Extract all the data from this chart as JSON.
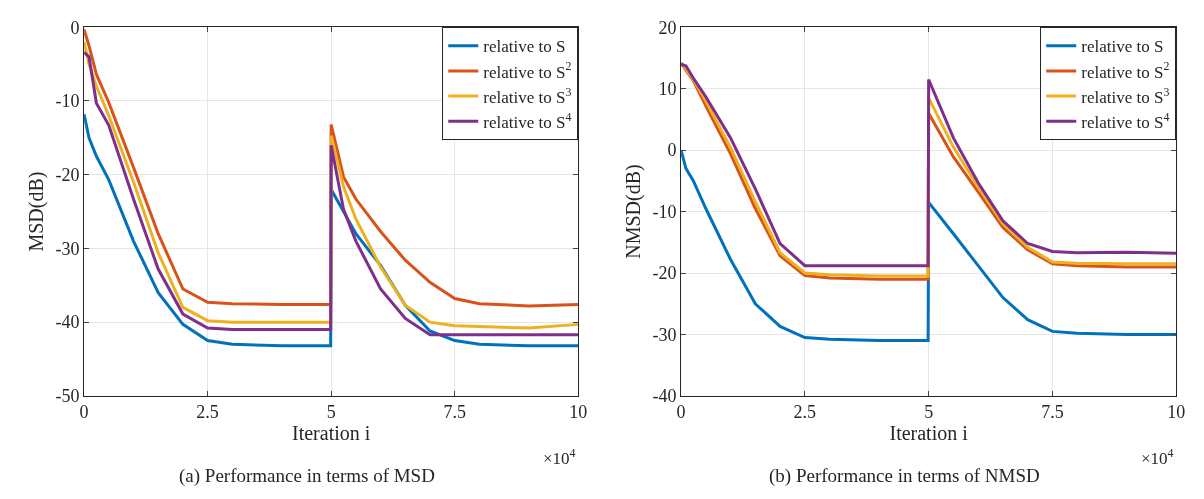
{
  "chart_data": [
    {
      "type": "line",
      "title": "(a) Performance in terms of MSD",
      "xlabel": "Iteration i",
      "ylabel": "MSD(dB)",
      "annotations": [
        "×10$^{4}$"
      ],
      "xlim": [
        0,
        10
      ],
      "xticks": [
        0,
        2.5,
        5,
        7.5,
        10
      ],
      "ylim": [
        -50,
        0
      ],
      "yticks": [
        -50,
        -40,
        -30,
        -20,
        -10,
        0
      ],
      "grid": true,
      "legend": "top right",
      "marker": "none",
      "line_style": "solid",
      "x": [
        0,
        0.1,
        0.25,
        0.5,
        1,
        1.5,
        2,
        2.5,
        3,
        4,
        4.99,
        5,
        5.25,
        5.5,
        6,
        6.5,
        7,
        7.5,
        8,
        9,
        10
      ],
      "series": [
        {
          "name": "relative to S",
          "color": "#0072bd",
          "values": [
            -11.8,
            -15,
            -17.5,
            -20.7,
            -29,
            -36,
            -40.3,
            -42.5,
            -43,
            -43.2,
            -43.2,
            -22,
            -25,
            -28,
            -32.3,
            -37.7,
            -41.2,
            -42.5,
            -43,
            -43.2,
            -43.2
          ]
        },
        {
          "name": "relative to S$^{2}$",
          "color": "#d95319",
          "values": [
            -0.3,
            -2.5,
            -6.4,
            -10.2,
            -19,
            -28,
            -35.5,
            -37.3,
            -37.5,
            -37.6,
            -37.6,
            -13.2,
            -20.3,
            -23.3,
            -27.7,
            -31.6,
            -34.6,
            -36.8,
            -37.5,
            -37.8,
            -37.6
          ]
        },
        {
          "name": "relative to S$^{3}$",
          "color": "#edb120",
          "values": [
            -2,
            -5,
            -8,
            -12,
            -21,
            -30.6,
            -38,
            -39.8,
            -40,
            -40,
            -40,
            -14.7,
            -21.6,
            -26,
            -32.5,
            -37.7,
            -40,
            -40.5,
            -40.6,
            -40.8,
            -40.3
          ]
        },
        {
          "name": "relative to S$^{4}$",
          "color": "#7e2f8e",
          "values": [
            -3.4,
            -4,
            -10.3,
            -13.3,
            -23.3,
            -32.8,
            -38.9,
            -40.8,
            -41,
            -41,
            -41,
            -16,
            -24.7,
            -29,
            -35.5,
            -39.5,
            -41.7,
            -41.7,
            -41.7,
            -41.7,
            -41.7
          ]
        }
      ]
    },
    {
      "type": "line",
      "title": "(b) Performance in terms of NMSD",
      "xlabel": "Iteration i",
      "ylabel": "NMSD(dB)",
      "annotations": [
        "×10$^{4}$"
      ],
      "xlim": [
        0,
        10
      ],
      "xticks": [
        0,
        2.5,
        5,
        7.5,
        10
      ],
      "ylim": [
        -40,
        20
      ],
      "yticks": [
        -40,
        -30,
        -20,
        -10,
        0,
        10,
        20
      ],
      "grid": true,
      "legend": "top right",
      "marker": "none",
      "line_style": "solid",
      "x": [
        0,
        0.1,
        0.25,
        0.5,
        1,
        1.5,
        2,
        2.5,
        3,
        4,
        4.99,
        5,
        5.5,
        6,
        6.5,
        7,
        7.5,
        8,
        9,
        10
      ],
      "series": [
        {
          "name": "relative to S",
          "color": "#0072bd",
          "values": [
            0,
            -3,
            -5,
            -9.5,
            -17.8,
            -25,
            -28.7,
            -30.5,
            -30.8,
            -31,
            -31,
            -8.5,
            -13.6,
            -18.8,
            -24,
            -27.6,
            -29.5,
            -29.8,
            -30,
            -30
          ]
        },
        {
          "name": "relative to S$^{2}$",
          "color": "#d95319",
          "values": [
            14.2,
            13,
            11.3,
            7.2,
            -0.6,
            -9.5,
            -17.2,
            -20.4,
            -20.8,
            -21,
            -21,
            6,
            -1.1,
            -6.8,
            -12.6,
            -16.2,
            -18.5,
            -18.8,
            -19,
            -19
          ]
        },
        {
          "name": "relative to S$^{3}$",
          "color": "#edb120",
          "values": [
            14,
            13.2,
            11.5,
            8,
            0.4,
            -8.4,
            -16.7,
            -20,
            -20.3,
            -20.5,
            -20.5,
            8.5,
            0.5,
            -6,
            -12,
            -15.8,
            -18.2,
            -18.4,
            -18.5,
            -18.5
          ]
        },
        {
          "name": "relative to S$^{4}$",
          "color": "#7e2f8e",
          "values": [
            14,
            13.7,
            11.7,
            8.7,
            2,
            -6.3,
            -15.2,
            -18.8,
            -18.8,
            -18.8,
            -18.8,
            11.5,
            2,
            -5.3,
            -11.5,
            -15.2,
            -16.5,
            -16.7,
            -16.6,
            -16.8
          ]
        }
      ]
    }
  ]
}
